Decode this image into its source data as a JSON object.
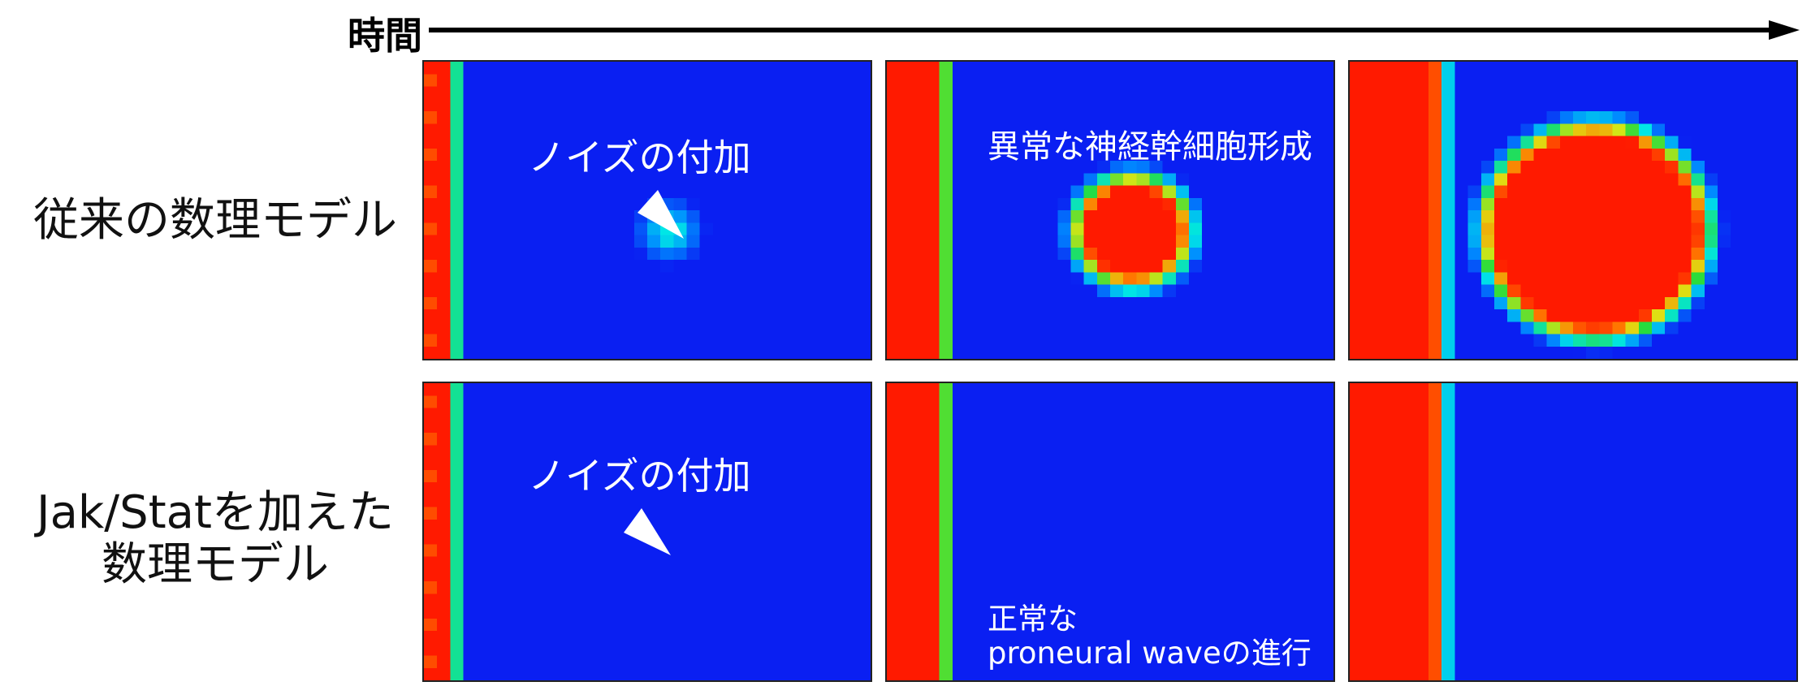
{
  "time_axis": {
    "label": "時間"
  },
  "rows": [
    {
      "label": "従来の数理モデル"
    },
    {
      "label": "Jak/Statを加えた\n数理モデル"
    }
  ],
  "panels": {
    "r1c1": {
      "annotation": "ノイズの付加",
      "blob": 0.15
    },
    "r1c2": {
      "annotation": "異常な神経幹細胞形成",
      "blob": 0.55
    },
    "r1c3": {
      "annotation": "",
      "blob": 1.0
    },
    "r2c1": {
      "annotation": "ノイズの付加",
      "blob": 0
    },
    "r2c2": {
      "annotation": "正常な\nproneural waveの進行",
      "blob": 0
    },
    "r2c3": {
      "annotation": "",
      "blob": 0
    }
  },
  "colors": {
    "background": "#0a1ff2",
    "text_on_panel": "#ffffff",
    "low": "#0a1ff2",
    "high": "#ff1a00"
  }
}
